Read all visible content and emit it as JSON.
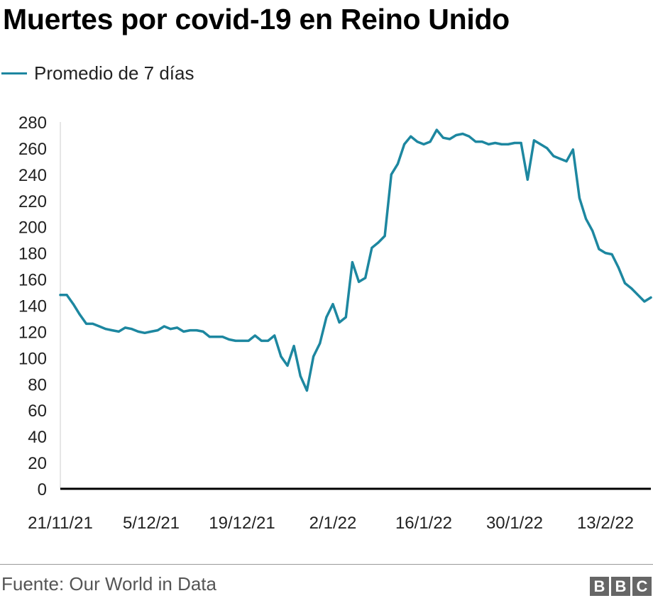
{
  "title": "Muertes por covid-19 en Reino Unido",
  "source": "Fuente: Our World in Data",
  "logo": [
    "B",
    "B",
    "C"
  ],
  "colors": {
    "line": "#1d87a0",
    "axis": "#000000",
    "text": "#222222"
  },
  "chart_data": {
    "type": "line",
    "title": "Muertes por covid-19 en Reino Unido",
    "xlabel": "",
    "ylabel": "",
    "ylim": [
      0,
      280
    ],
    "yticks": [
      0,
      20,
      40,
      60,
      80,
      100,
      120,
      140,
      160,
      180,
      200,
      220,
      240,
      260,
      280
    ],
    "xtick_labels": [
      "21/11/21",
      "5/12/21",
      "19/12/21",
      "2/1/22",
      "16/1/22",
      "30/1/22",
      "13/2/22"
    ],
    "xtick_dates": [
      "2021-11-21",
      "2021-12-05",
      "2021-12-19",
      "2022-01-02",
      "2022-01-16",
      "2022-01-30",
      "2022-02-13"
    ],
    "grid": false,
    "legend_position": "top-left",
    "series": [
      {
        "name": "Promedio de 7 días",
        "x": [
          "2021-11-21",
          "2021-11-22",
          "2021-11-23",
          "2021-11-24",
          "2021-11-25",
          "2021-11-26",
          "2021-11-27",
          "2021-11-28",
          "2021-11-29",
          "2021-11-30",
          "2021-12-01",
          "2021-12-02",
          "2021-12-03",
          "2021-12-04",
          "2021-12-05",
          "2021-12-06",
          "2021-12-07",
          "2021-12-08",
          "2021-12-09",
          "2021-12-10",
          "2021-12-11",
          "2021-12-12",
          "2021-12-13",
          "2021-12-14",
          "2021-12-15",
          "2021-12-16",
          "2021-12-17",
          "2021-12-18",
          "2021-12-19",
          "2021-12-20",
          "2021-12-21",
          "2021-12-22",
          "2021-12-23",
          "2021-12-24",
          "2021-12-25",
          "2021-12-26",
          "2021-12-27",
          "2021-12-28",
          "2021-12-29",
          "2021-12-30",
          "2021-12-31",
          "2022-01-01",
          "2022-01-02",
          "2022-01-03",
          "2022-01-04",
          "2022-01-05",
          "2022-01-06",
          "2022-01-07",
          "2022-01-08",
          "2022-01-09",
          "2022-01-10",
          "2022-01-11",
          "2022-01-12",
          "2022-01-13",
          "2022-01-14",
          "2022-01-15",
          "2022-01-16",
          "2022-01-17",
          "2022-01-18",
          "2022-01-19",
          "2022-01-20",
          "2022-01-21",
          "2022-01-22",
          "2022-01-23",
          "2022-01-24",
          "2022-01-25",
          "2022-01-26",
          "2022-01-27",
          "2022-01-28",
          "2022-01-29",
          "2022-01-30",
          "2022-01-31",
          "2022-02-01",
          "2022-02-02",
          "2022-02-03",
          "2022-02-04",
          "2022-02-05",
          "2022-02-06",
          "2022-02-07",
          "2022-02-08",
          "2022-02-09",
          "2022-02-10",
          "2022-02-11",
          "2022-02-12",
          "2022-02-13",
          "2022-02-14",
          "2022-02-15",
          "2022-02-16",
          "2022-02-17",
          "2022-02-18",
          "2022-02-19",
          "2022-02-20"
        ],
        "y": [
          148,
          148,
          141,
          133,
          126,
          126,
          124,
          122,
          121,
          120,
          123,
          122,
          120,
          119,
          120,
          121,
          124,
          122,
          123,
          120,
          121,
          121,
          120,
          116,
          116,
          116,
          114,
          113,
          113,
          113,
          117,
          113,
          113,
          117,
          101,
          94,
          109,
          86,
          75,
          101,
          111,
          131,
          141,
          127,
          131,
          173,
          158,
          161,
          184,
          188,
          193,
          240,
          248,
          263,
          269,
          265,
          263,
          265,
          274,
          268,
          267,
          270,
          271,
          269,
          265,
          265,
          263,
          264,
          263,
          263,
          264,
          264,
          236,
          266,
          263,
          260,
          254,
          252,
          250,
          259,
          222,
          206,
          197,
          183,
          180,
          179,
          169,
          157,
          153,
          148,
          143,
          146
        ]
      }
    ]
  }
}
